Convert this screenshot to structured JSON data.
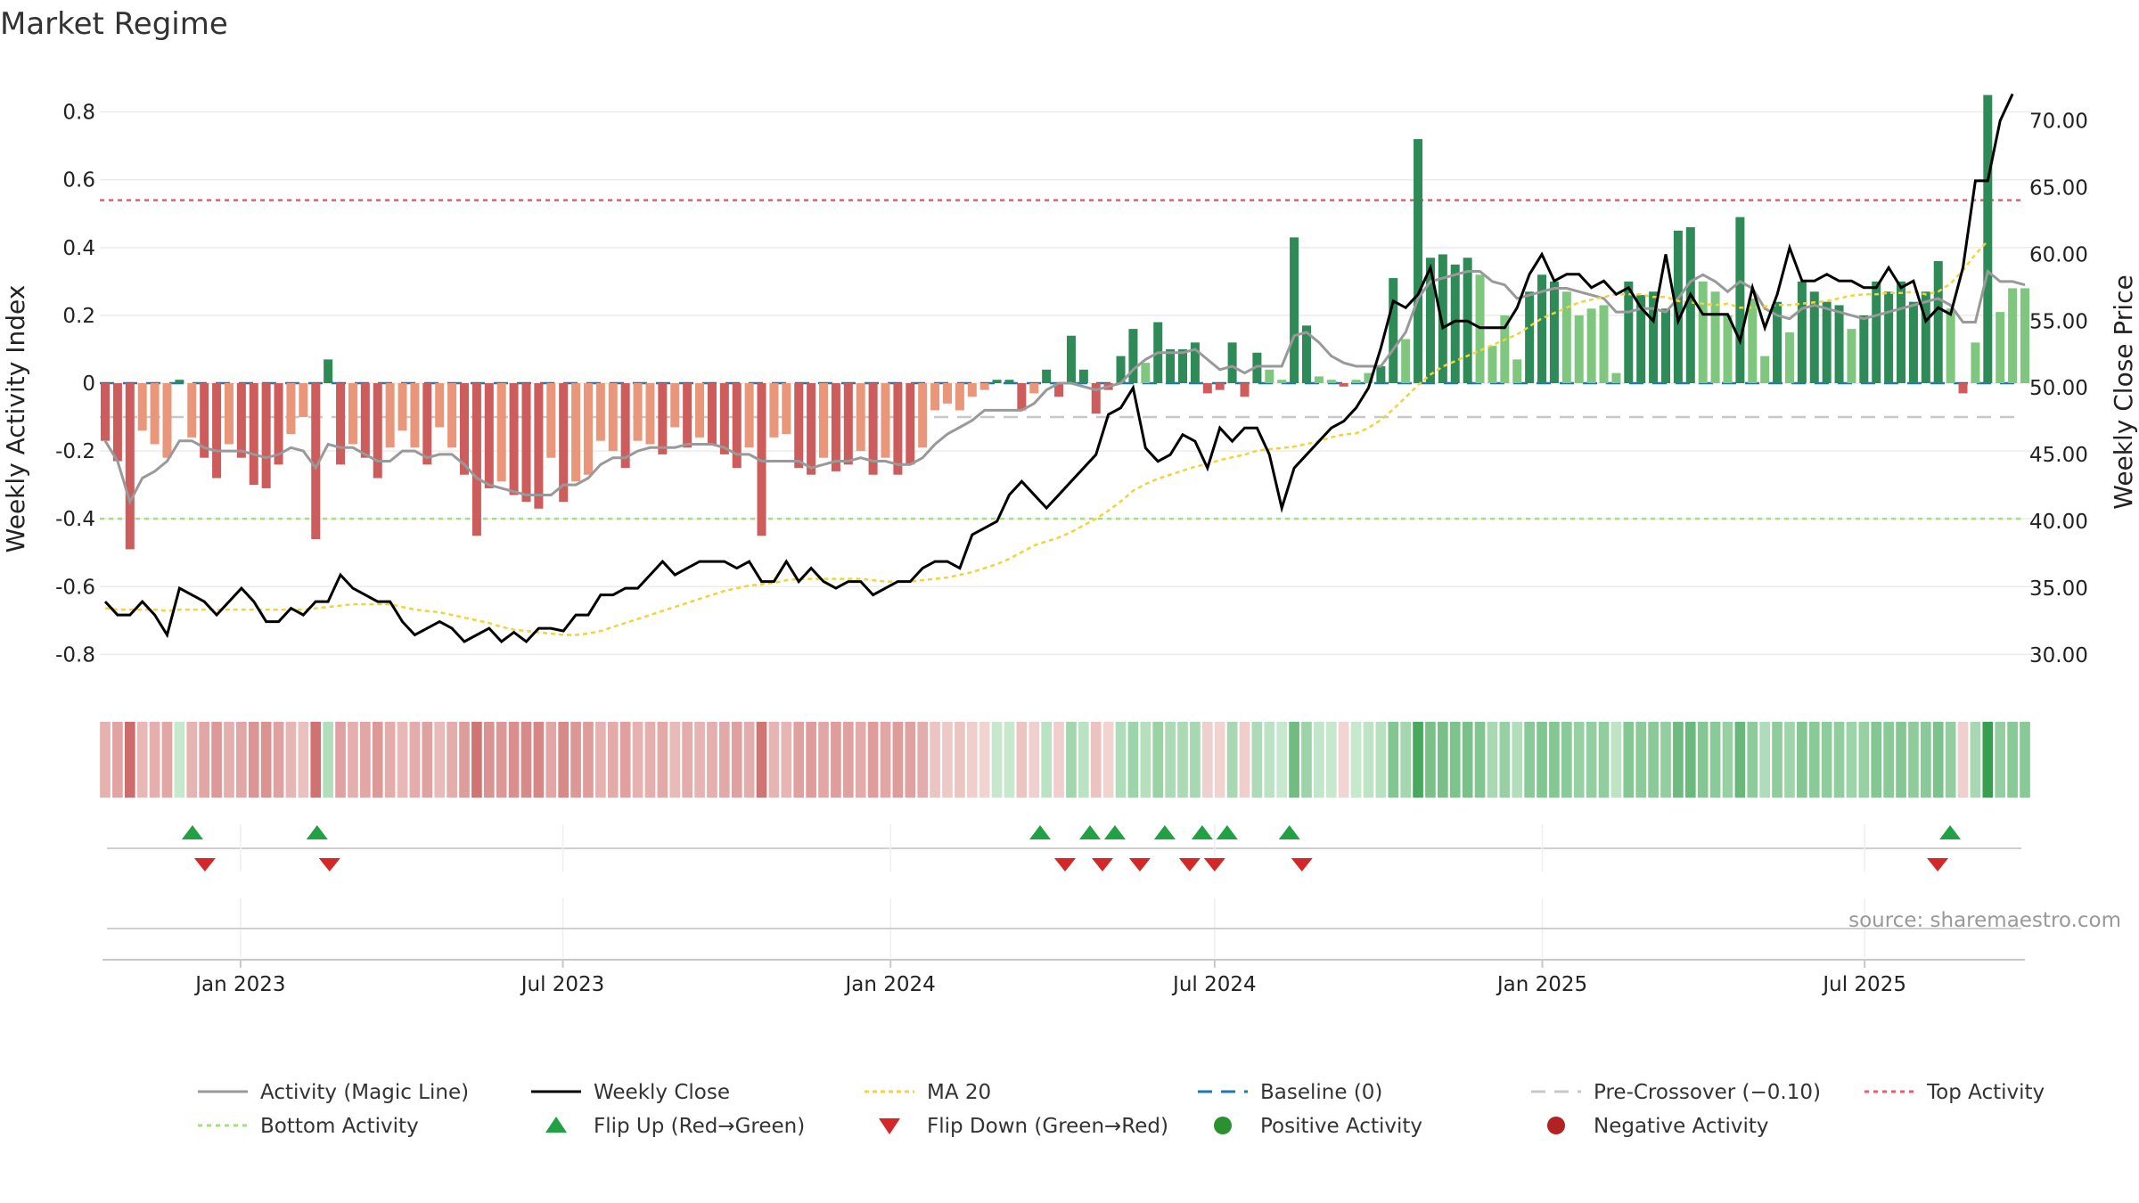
{
  "title": "Market Regime",
  "source_note": "source: sharemaestro.com",
  "colors": {
    "pos_dark": "#2e8b57",
    "pos_light": "#7fc77f",
    "neg_dark": "#cd5c5c",
    "neg_light": "#e9967a",
    "close": "#000000",
    "magic": "#999999",
    "ma": "#f0d43a",
    "top": "#e06070",
    "bottom": "#a8dc80",
    "baseline": "#1f77b4",
    "pre": "#c8c8c8",
    "flip_up": "#22a044",
    "flip_down": "#d62728"
  },
  "chart_data": {
    "type": "bar",
    "title": "Market Regime",
    "xlabel": "",
    "left_axis": {
      "label": "Weekly Activity Index",
      "range": [
        -0.92,
        0.92
      ],
      "ticks": [
        "0.8",
        "0.6",
        "0.4",
        "0.2",
        "0",
        "-0.2",
        "-0.4",
        "-0.6",
        "-0.8"
      ],
      "tick_values": [
        0.8,
        0.6,
        0.4,
        0.2,
        0,
        -0.2,
        -0.4,
        -0.6,
        -0.8
      ]
    },
    "right_axis": {
      "label": "Weekly Close Price",
      "range": [
        27.0,
        73.7
      ],
      "ticks": [
        "70.00",
        "65.00",
        "60.00",
        "55.00",
        "50.00",
        "45.00",
        "40.00",
        "35.00",
        "30.00"
      ],
      "tick_values": [
        70,
        65,
        60,
        55,
        50,
        45,
        40,
        35,
        30
      ]
    },
    "x_axis": {
      "start": "2022-10-17",
      "end": "2025-09-29",
      "ticks": [
        "Jan 2023",
        "Jul 2023",
        "Jan 2024",
        "Jul 2024",
        "Jan 2025",
        "Jul 2025"
      ],
      "tick_dates": [
        "2023-01-01",
        "2023-07-01",
        "2024-01-01",
        "2024-07-01",
        "2025-01-01",
        "2025-07-01"
      ]
    },
    "reference_lines": {
      "top_activity": 0.54,
      "bottom_activity": -0.4,
      "baseline": 0,
      "pre_crossover": -0.1
    },
    "weekly_activity": [
      -0.17,
      -0.23,
      -0.49,
      -0.14,
      -0.18,
      -0.22,
      0.01,
      -0.16,
      -0.22,
      -0.28,
      -0.18,
      -0.22,
      -0.3,
      -0.31,
      -0.24,
      -0.15,
      -0.1,
      -0.46,
      0.07,
      -0.24,
      -0.18,
      -0.22,
      -0.28,
      -0.19,
      -0.14,
      -0.19,
      -0.24,
      -0.13,
      -0.19,
      -0.27,
      -0.45,
      -0.31,
      -0.29,
      -0.33,
      -0.35,
      -0.37,
      -0.22,
      -0.35,
      -0.29,
      -0.27,
      -0.17,
      -0.2,
      -0.25,
      -0.17,
      -0.18,
      -0.21,
      -0.13,
      -0.19,
      -0.16,
      -0.18,
      -0.21,
      -0.25,
      -0.19,
      -0.45,
      -0.16,
      -0.15,
      -0.25,
      -0.27,
      -0.22,
      -0.26,
      -0.24,
      -0.2,
      -0.27,
      -0.22,
      -0.27,
      -0.24,
      -0.19,
      -0.08,
      -0.06,
      -0.08,
      -0.04,
      -0.02,
      0.01,
      0.01,
      -0.08,
      -0.03,
      0.04,
      -0.04,
      0.14,
      0.04,
      -0.09,
      -0.02,
      0.08,
      0.16,
      0.06,
      0.18,
      0.1,
      0.1,
      0.12,
      -0.03,
      -0.02,
      0.12,
      -0.04,
      0.09,
      0.04,
      0.01,
      0.43,
      0.17,
      0.02,
      0.01,
      -0.01,
      0.01,
      0.03,
      0.05,
      0.31,
      0.13,
      0.72,
      0.37,
      0.38,
      0.35,
      0.37,
      0.32,
      0.11,
      0.2,
      0.07,
      0.27,
      0.32,
      0.3,
      0.27,
      0.2,
      0.22,
      0.23,
      0.03,
      0.3,
      0.26,
      0.27,
      0.22,
      0.45,
      0.46,
      0.3,
      0.27,
      0.2,
      0.49,
      0.25,
      0.08,
      0.24,
      0.15,
      0.3,
      0.27,
      0.24,
      0.23,
      0.16,
      0.2,
      0.3,
      0.27,
      0.3,
      0.24,
      0.27,
      0.36,
      0.22,
      -0.03,
      0.12,
      0.85,
      0.21,
      0.28,
      0.28
    ],
    "magic_line": [
      -0.17,
      -0.23,
      -0.35,
      -0.28,
      -0.26,
      -0.23,
      -0.17,
      -0.17,
      -0.19,
      -0.2,
      -0.2,
      -0.2,
      -0.21,
      -0.22,
      -0.21,
      -0.19,
      -0.2,
      -0.25,
      -0.18,
      -0.19,
      -0.19,
      -0.21,
      -0.23,
      -0.23,
      -0.2,
      -0.2,
      -0.22,
      -0.21,
      -0.21,
      -0.24,
      -0.28,
      -0.3,
      -0.31,
      -0.32,
      -0.33,
      -0.33,
      -0.33,
      -0.3,
      -0.3,
      -0.28,
      -0.24,
      -0.22,
      -0.22,
      -0.2,
      -0.19,
      -0.19,
      -0.19,
      -0.18,
      -0.18,
      -0.18,
      -0.19,
      -0.21,
      -0.21,
      -0.23,
      -0.23,
      -0.23,
      -0.23,
      -0.25,
      -0.24,
      -0.23,
      -0.23,
      -0.22,
      -0.23,
      -0.23,
      -0.24,
      -0.24,
      -0.22,
      -0.18,
      -0.15,
      -0.13,
      -0.11,
      -0.08,
      -0.08,
      -0.08,
      -0.08,
      -0.06,
      -0.02,
      0.0,
      0.0,
      -0.01,
      -0.02,
      -0.01,
      0.0,
      0.04,
      0.07,
      0.09,
      0.09,
      0.09,
      0.1,
      0.07,
      0.04,
      0.05,
      0.03,
      0.05,
      0.05,
      0.05,
      0.14,
      0.15,
      0.12,
      0.08,
      0.06,
      0.05,
      0.05,
      0.05,
      0.1,
      0.15,
      0.25,
      0.3,
      0.31,
      0.32,
      0.33,
      0.33,
      0.3,
      0.29,
      0.25,
      0.26,
      0.27,
      0.28,
      0.28,
      0.27,
      0.26,
      0.25,
      0.21,
      0.21,
      0.22,
      0.22,
      0.21,
      0.25,
      0.3,
      0.32,
      0.3,
      0.27,
      0.3,
      0.28,
      0.22,
      0.2,
      0.19,
      0.22,
      0.23,
      0.22,
      0.21,
      0.2,
      0.19,
      0.2,
      0.21,
      0.22,
      0.23,
      0.24,
      0.25,
      0.23,
      0.18,
      0.18,
      0.33,
      0.3,
      0.3,
      0.29
    ],
    "weekly_close": [
      34.0,
      33.0,
      33.0,
      34.0,
      33.0,
      31.5,
      35.0,
      34.5,
      34.0,
      33.0,
      34.0,
      35.0,
      34.0,
      32.5,
      32.5,
      33.5,
      33.0,
      34.0,
      34.0,
      36.0,
      35.0,
      34.5,
      34.0,
      34.0,
      32.5,
      31.5,
      32.0,
      32.5,
      32.0,
      31.0,
      31.5,
      32.0,
      31.0,
      31.7,
      31.0,
      32.0,
      32.0,
      31.8,
      33.0,
      33.0,
      34.5,
      34.5,
      35.0,
      35.0,
      36.0,
      37.0,
      36.0,
      36.5,
      37.0,
      37.0,
      37.0,
      36.5,
      37.0,
      35.5,
      35.5,
      37.0,
      35.5,
      36.5,
      35.5,
      35.0,
      35.5,
      35.5,
      34.5,
      35.0,
      35.5,
      35.5,
      36.5,
      37.0,
      37.0,
      36.5,
      39.0,
      39.5,
      40.0,
      42.0,
      43.0,
      42.0,
      41.0,
      42.0,
      43.0,
      44.0,
      45.0,
      48.0,
      48.5,
      50.0,
      45.5,
      44.5,
      45.0,
      46.5,
      46.0,
      44.0,
      47.0,
      46.0,
      47.0,
      47.0,
      45.0,
      41.0,
      44.0,
      45.0,
      46.0,
      47.0,
      47.5,
      48.5,
      50.0,
      53.0,
      56.5,
      56.0,
      57.0,
      59.0,
      54.5,
      55.0,
      55.0,
      54.5,
      54.5,
      54.5,
      56.0,
      58.5,
      60.0,
      58.0,
      58.5,
      58.5,
      57.5,
      58.0,
      57.0,
      57.5,
      56.0,
      55.0,
      60.0,
      55.0,
      57.0,
      55.5,
      55.5,
      55.5,
      53.5,
      57.5,
      54.5,
      57.0,
      60.5,
      58.0,
      58.0,
      58.5,
      58.0,
      58.0,
      57.5,
      57.5,
      59.0,
      57.5,
      58.0,
      55.0,
      56.0,
      55.5,
      59.0,
      65.5,
      65.5,
      70.0,
      72.0
    ],
    "ma20": [
      33.5,
      33.4,
      33.4,
      33.4,
      33.4,
      33.3,
      33.4,
      33.4,
      33.4,
      33.4,
      33.4,
      33.4,
      33.4,
      33.4,
      33.4,
      33.4,
      33.4,
      33.5,
      33.6,
      33.7,
      33.8,
      33.8,
      33.8,
      33.8,
      33.6,
      33.4,
      33.3,
      33.2,
      33.0,
      32.8,
      32.6,
      32.4,
      32.1,
      31.9,
      31.8,
      31.7,
      31.6,
      31.5,
      31.5,
      31.6,
      31.8,
      32.1,
      32.4,
      32.7,
      33.0,
      33.3,
      33.6,
      33.9,
      34.2,
      34.5,
      34.8,
      35.0,
      35.2,
      35.3,
      35.4,
      35.6,
      35.7,
      35.7,
      35.7,
      35.7,
      35.7,
      35.7,
      35.6,
      35.5,
      35.5,
      35.5,
      35.6,
      35.7,
      35.8,
      36.0,
      36.2,
      36.5,
      36.8,
      37.2,
      37.7,
      38.2,
      38.5,
      38.8,
      39.2,
      39.7,
      40.2,
      40.8,
      41.5,
      42.3,
      42.8,
      43.2,
      43.5,
      43.8,
      44.1,
      44.3,
      44.6,
      44.8,
      45.0,
      45.3,
      45.4,
      45.5,
      45.6,
      45.8,
      46.0,
      46.3,
      46.5,
      46.6,
      47.0,
      47.6,
      48.4,
      49.3,
      50.2,
      51.0,
      51.6,
      52.0,
      52.4,
      52.8,
      53.2,
      53.6,
      54.0,
      54.6,
      55.2,
      55.6,
      56.0,
      56.4,
      56.6,
      56.8,
      57.0,
      57.0,
      57.0,
      56.8,
      56.8,
      56.5,
      56.4,
      56.3,
      56.2,
      56.3,
      56.0,
      56.0,
      56.1,
      56.2,
      56.2,
      56.3,
      56.4,
      56.5,
      56.7,
      56.9,
      57.0,
      57.0,
      57.1,
      57.1,
      57.2,
      57.0,
      57.2,
      57.8,
      58.8,
      60.0,
      61.0
    ],
    "flip_up_dates": [
      "2022-12-05",
      "2023-02-13",
      "2024-03-25",
      "2024-04-22",
      "2024-05-06",
      "2024-06-03",
      "2024-06-24",
      "2024-07-08",
      "2024-08-12",
      "2025-08-18"
    ],
    "flip_down_dates": [
      "2022-12-12",
      "2023-02-20",
      "2024-04-08",
      "2024-04-29",
      "2024-05-20",
      "2024-06-17",
      "2024-07-01",
      "2024-08-19",
      "2025-08-11"
    ],
    "legend": [
      "Activity (Magic Line)",
      "Weekly Close",
      "MA 20",
      "Baseline (0)",
      "Pre-Crossover (−0.10)",
      "Top Activity",
      "Bottom Activity",
      "Flip Up (Red→Green)",
      "Flip Down (Green→Red)",
      "Positive Activity",
      "Negative Activity"
    ]
  }
}
